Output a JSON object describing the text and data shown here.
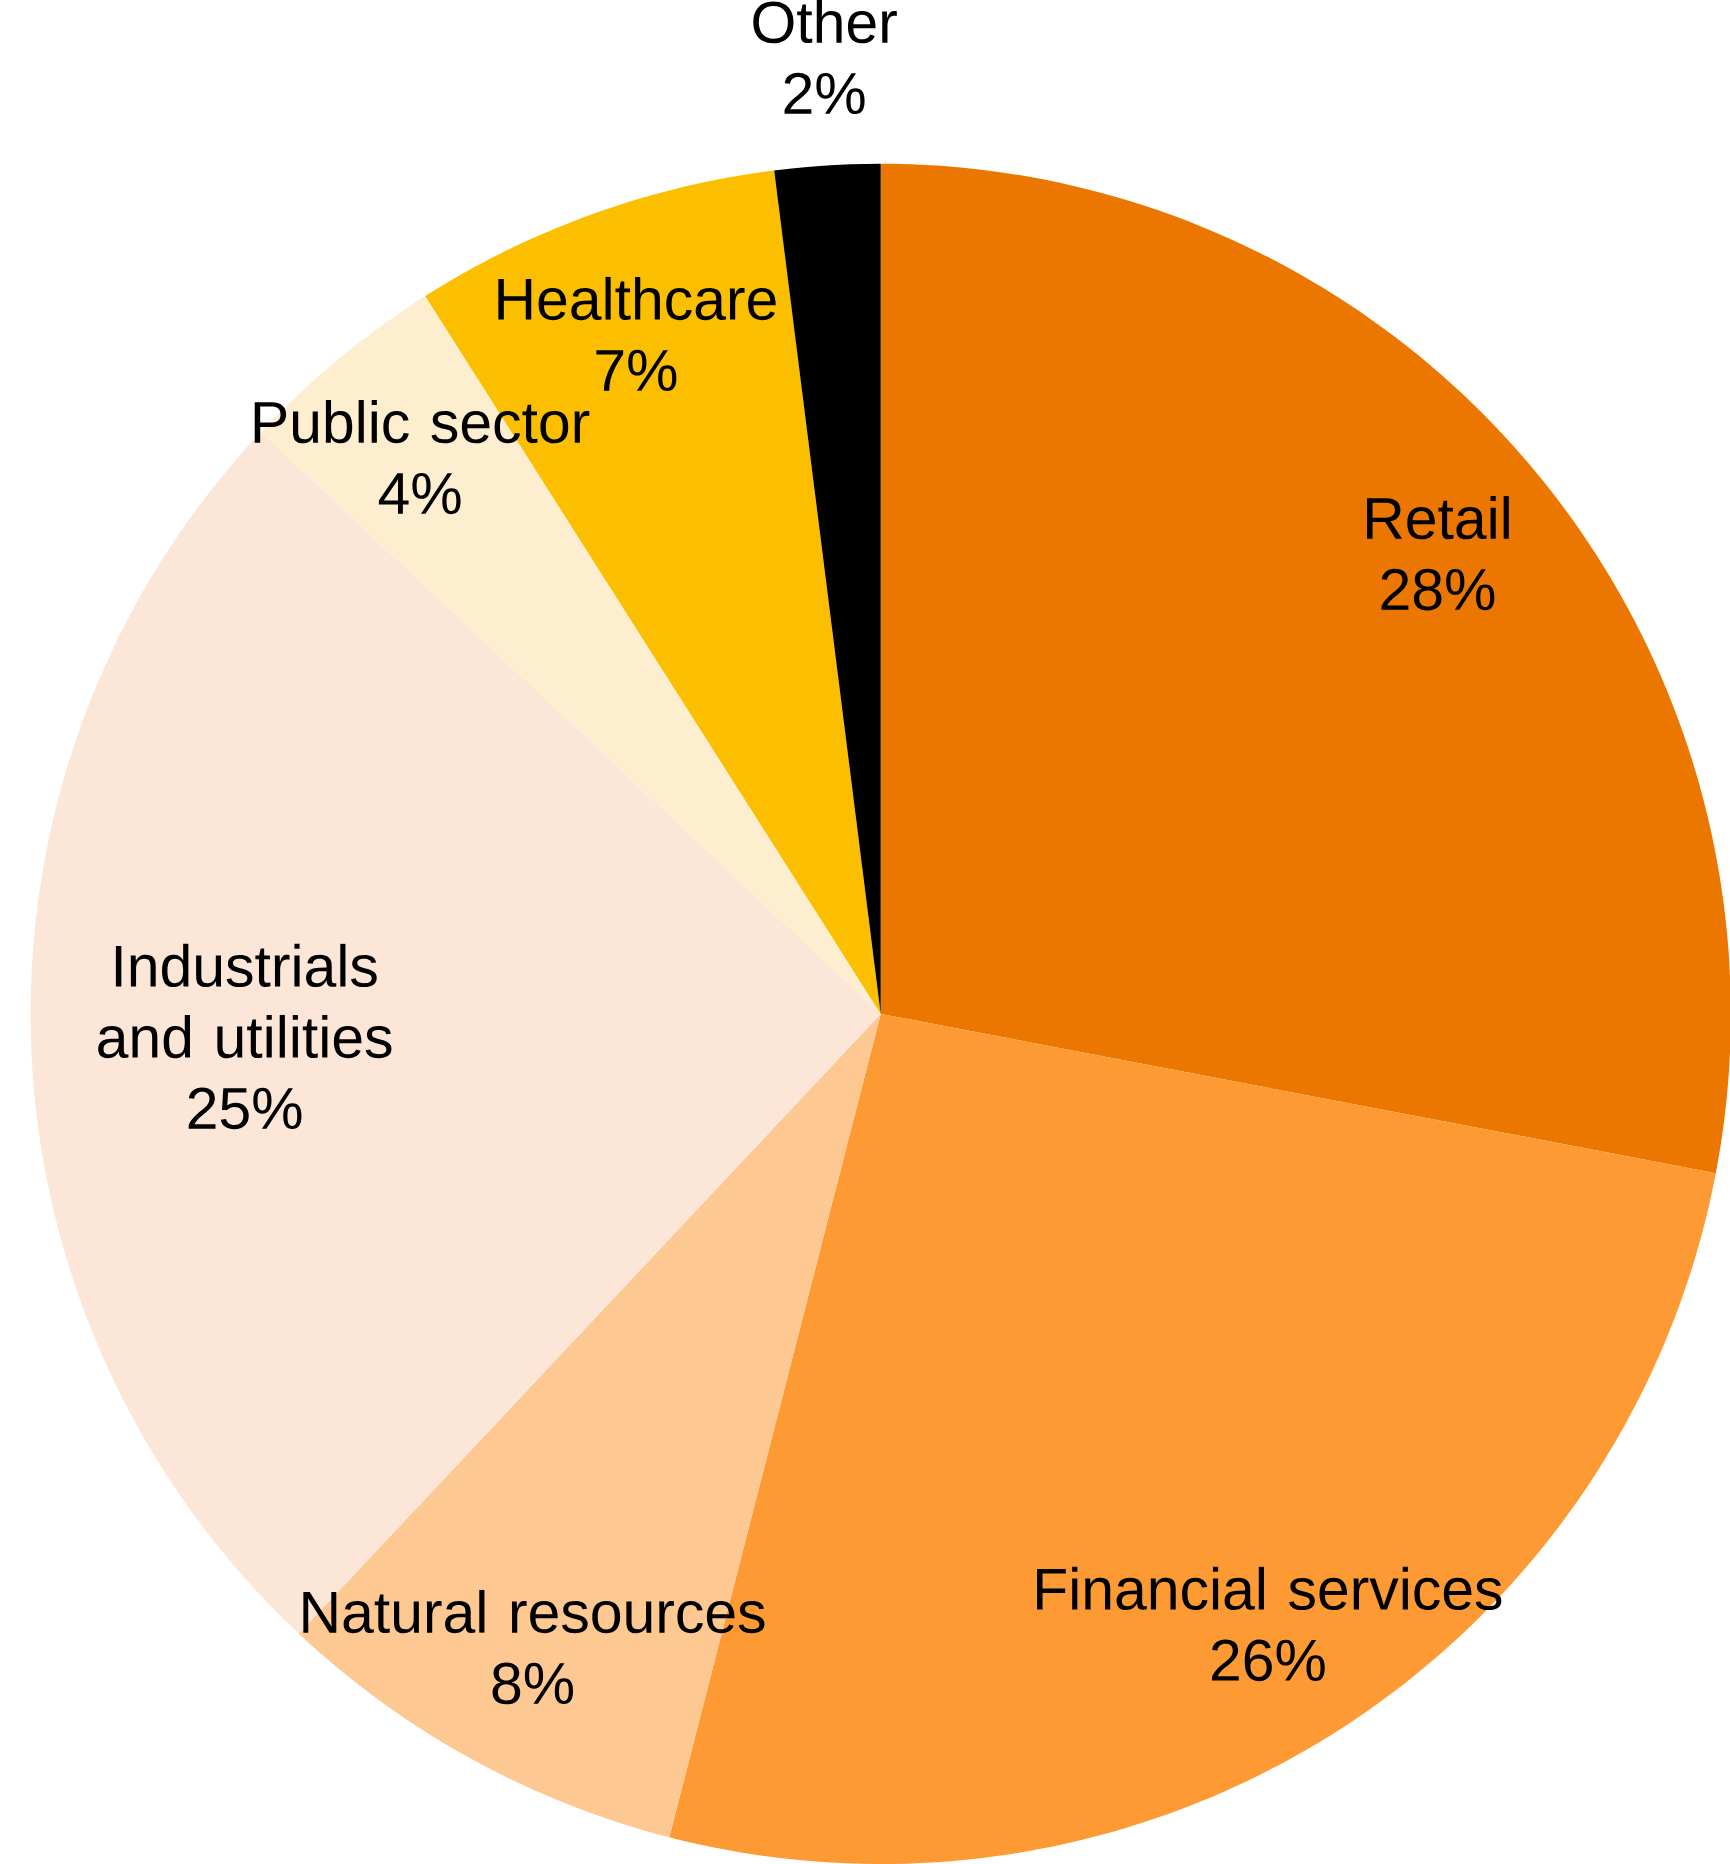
{
  "chart_data": {
    "type": "pie",
    "categories": [
      "Retail",
      "Financial services",
      "Natural resources",
      "Industrials and utilities",
      "Public sector",
      "Healthcare",
      "Other"
    ],
    "values": [
      28,
      26,
      8,
      25,
      4,
      7,
      2
    ],
    "value_labels": [
      "28%",
      "26%",
      "8%",
      "25%",
      "4%",
      "7%",
      "2%"
    ],
    "colors": [
      "#eb7600",
      "#fd9a33",
      "#fdc891",
      "#fce6d7",
      "#fdeecf",
      "#fcbf00",
      "#000000"
    ]
  }
}
